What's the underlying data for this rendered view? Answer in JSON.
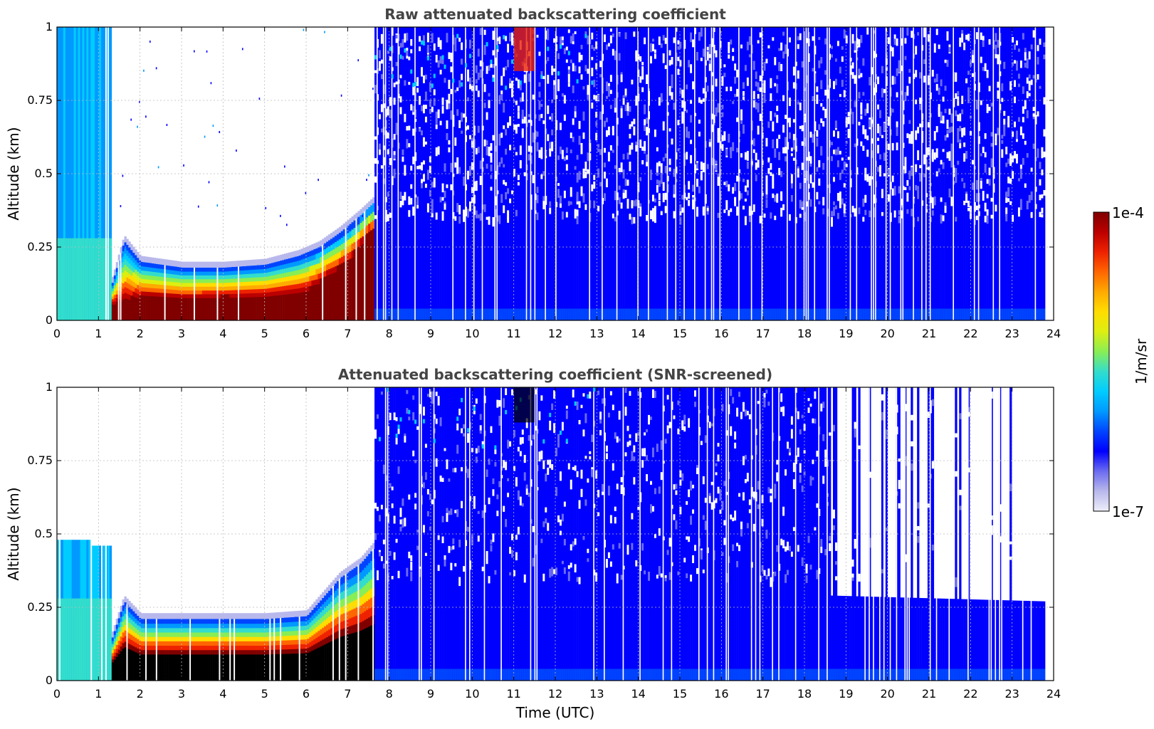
{
  "chart_data": [
    {
      "type": "heatmap",
      "title": "Raw attenuated backscattering coefficient",
      "xlabel": "",
      "ylabel": "Altitude (km)",
      "xlim": [
        0,
        24
      ],
      "ylim": [
        0,
        1
      ],
      "xticks": [
        "0",
        "1",
        "2",
        "3",
        "4",
        "5",
        "6",
        "7",
        "8",
        "9",
        "10",
        "11",
        "12",
        "13",
        "14",
        "15",
        "16",
        "17",
        "18",
        "19",
        "20",
        "21",
        "22",
        "23",
        "24"
      ],
      "yticks": [
        "0",
        "0.25",
        "0.5",
        "0.75",
        "1"
      ],
      "grid": true,
      "layers": [
        {
          "feature": "aerosol layer top",
          "time": [
            1.3,
            1.6,
            2.0,
            3.0,
            4.0,
            5.0,
            5.8,
            6.3,
            6.8,
            7.3,
            7.6
          ],
          "altitude": [
            0.12,
            0.27,
            0.2,
            0.18,
            0.18,
            0.19,
            0.22,
            0.25,
            0.3,
            0.36,
            0.4
          ]
        },
        {
          "feature": "saturated core",
          "time": [
            1.2,
            2.0,
            3.0,
            4.0,
            5.0,
            6.0,
            7.0,
            7.5
          ],
          "altitude": [
            0.05,
            0.08,
            0.07,
            0.08,
            0.08,
            0.1,
            0.2,
            0.3
          ]
        },
        {
          "feature": "noisy background",
          "time_range": [
            7.6,
            23.8
          ],
          "altitude_range": [
            0,
            1
          ]
        },
        {
          "feature": "elevated signal",
          "time": [
            11.0,
            11.5
          ],
          "altitude": [
            0.85,
            1.0
          ]
        }
      ]
    },
    {
      "type": "heatmap",
      "title": "Attenuated backscattering coefficient (SNR-screened)",
      "xlabel": "Time (UTC)",
      "ylabel": "Altitude (km)",
      "xlim": [
        0,
        24
      ],
      "ylim": [
        0,
        1
      ],
      "xticks": [
        "0",
        "1",
        "2",
        "3",
        "4",
        "5",
        "6",
        "7",
        "8",
        "9",
        "10",
        "11",
        "12",
        "13",
        "14",
        "15",
        "16",
        "17",
        "18",
        "19",
        "20",
        "21",
        "22",
        "23",
        "24"
      ],
      "yticks": [
        "0",
        "0.25",
        "0.5",
        "0.75",
        "1"
      ],
      "grid": true,
      "layers": [
        {
          "feature": "screened layer top",
          "time": [
            1.3,
            1.6,
            2.0,
            3.0,
            4.0,
            5.0,
            6.0,
            6.8,
            7.3,
            7.6
          ],
          "altitude": [
            0.14,
            0.27,
            0.21,
            0.21,
            0.21,
            0.21,
            0.22,
            0.35,
            0.4,
            0.45
          ]
        },
        {
          "feature": "screened boundary after 18.6 UTC",
          "time": [
            18.6,
            23.8
          ],
          "altitude": [
            0.29,
            0.27
          ]
        }
      ]
    }
  ],
  "colorbar": {
    "label": "1/m/sr",
    "max_label": "1e-4",
    "min_label": "1e-7",
    "colors": [
      "#eeeefa",
      "#b8b8ec",
      "#6b6bf0",
      "#0000ff",
      "#0044ff",
      "#0099ff",
      "#00ccff",
      "#33ddcc",
      "#88ee55",
      "#ddee11",
      "#ffdd00",
      "#ffaa00",
      "#ff6600",
      "#ee2200",
      "#bb0000",
      "#800000"
    ]
  }
}
